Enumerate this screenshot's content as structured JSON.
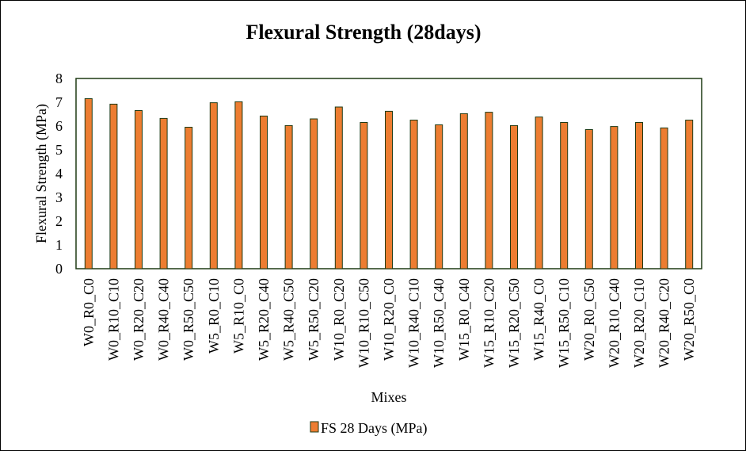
{
  "chart_data": {
    "type": "bar",
    "title": "Flexural Strength (28days)",
    "xlabel": "Mixes",
    "ylabel": "Flexural Strength  (MPa)",
    "ylim": [
      0,
      8
    ],
    "yticks": [
      "0",
      "1",
      "2",
      "3",
      "4",
      "5",
      "6",
      "7",
      "8"
    ],
    "grid": false,
    "legend_position": "bottom",
    "categories": [
      "W0_R0_C0",
      "W0_R10_C10",
      "W0_R20_C20",
      "W0_R40_C40",
      "W0_R50_C50",
      "W5_R0_C10",
      "W5_R10_C0",
      "W5_R20_C40",
      "W5_R40_C50",
      "W5_R50_C20",
      "W10_R0_C20",
      "W10_R10_C50",
      "W10_R20_C0",
      "W10_R40_C10",
      "W10_R50_C40",
      "W15_R0_C40",
      "W15_R10_C20",
      "W15_R20_C50",
      "W15_R40_C0",
      "W15_R50_C10",
      "W20_R0_C50",
      "W20_R10_C40",
      "W20_R20_C10",
      "W20_R40_C20",
      "W20_R50_C0"
    ],
    "series": [
      {
        "name": "FS 28 Days (MPa)",
        "color": "#ED7D31",
        "edge_color": "#1E3A14",
        "values": [
          7.15,
          6.92,
          6.65,
          6.32,
          5.95,
          6.98,
          7.02,
          6.42,
          6.02,
          6.3,
          6.8,
          6.15,
          6.62,
          6.25,
          6.05,
          6.52,
          6.58,
          6.02,
          6.38,
          6.15,
          5.85,
          5.98,
          6.15,
          5.92,
          6.25
        ]
      }
    ],
    "frame_color": "#1E3A14"
  }
}
